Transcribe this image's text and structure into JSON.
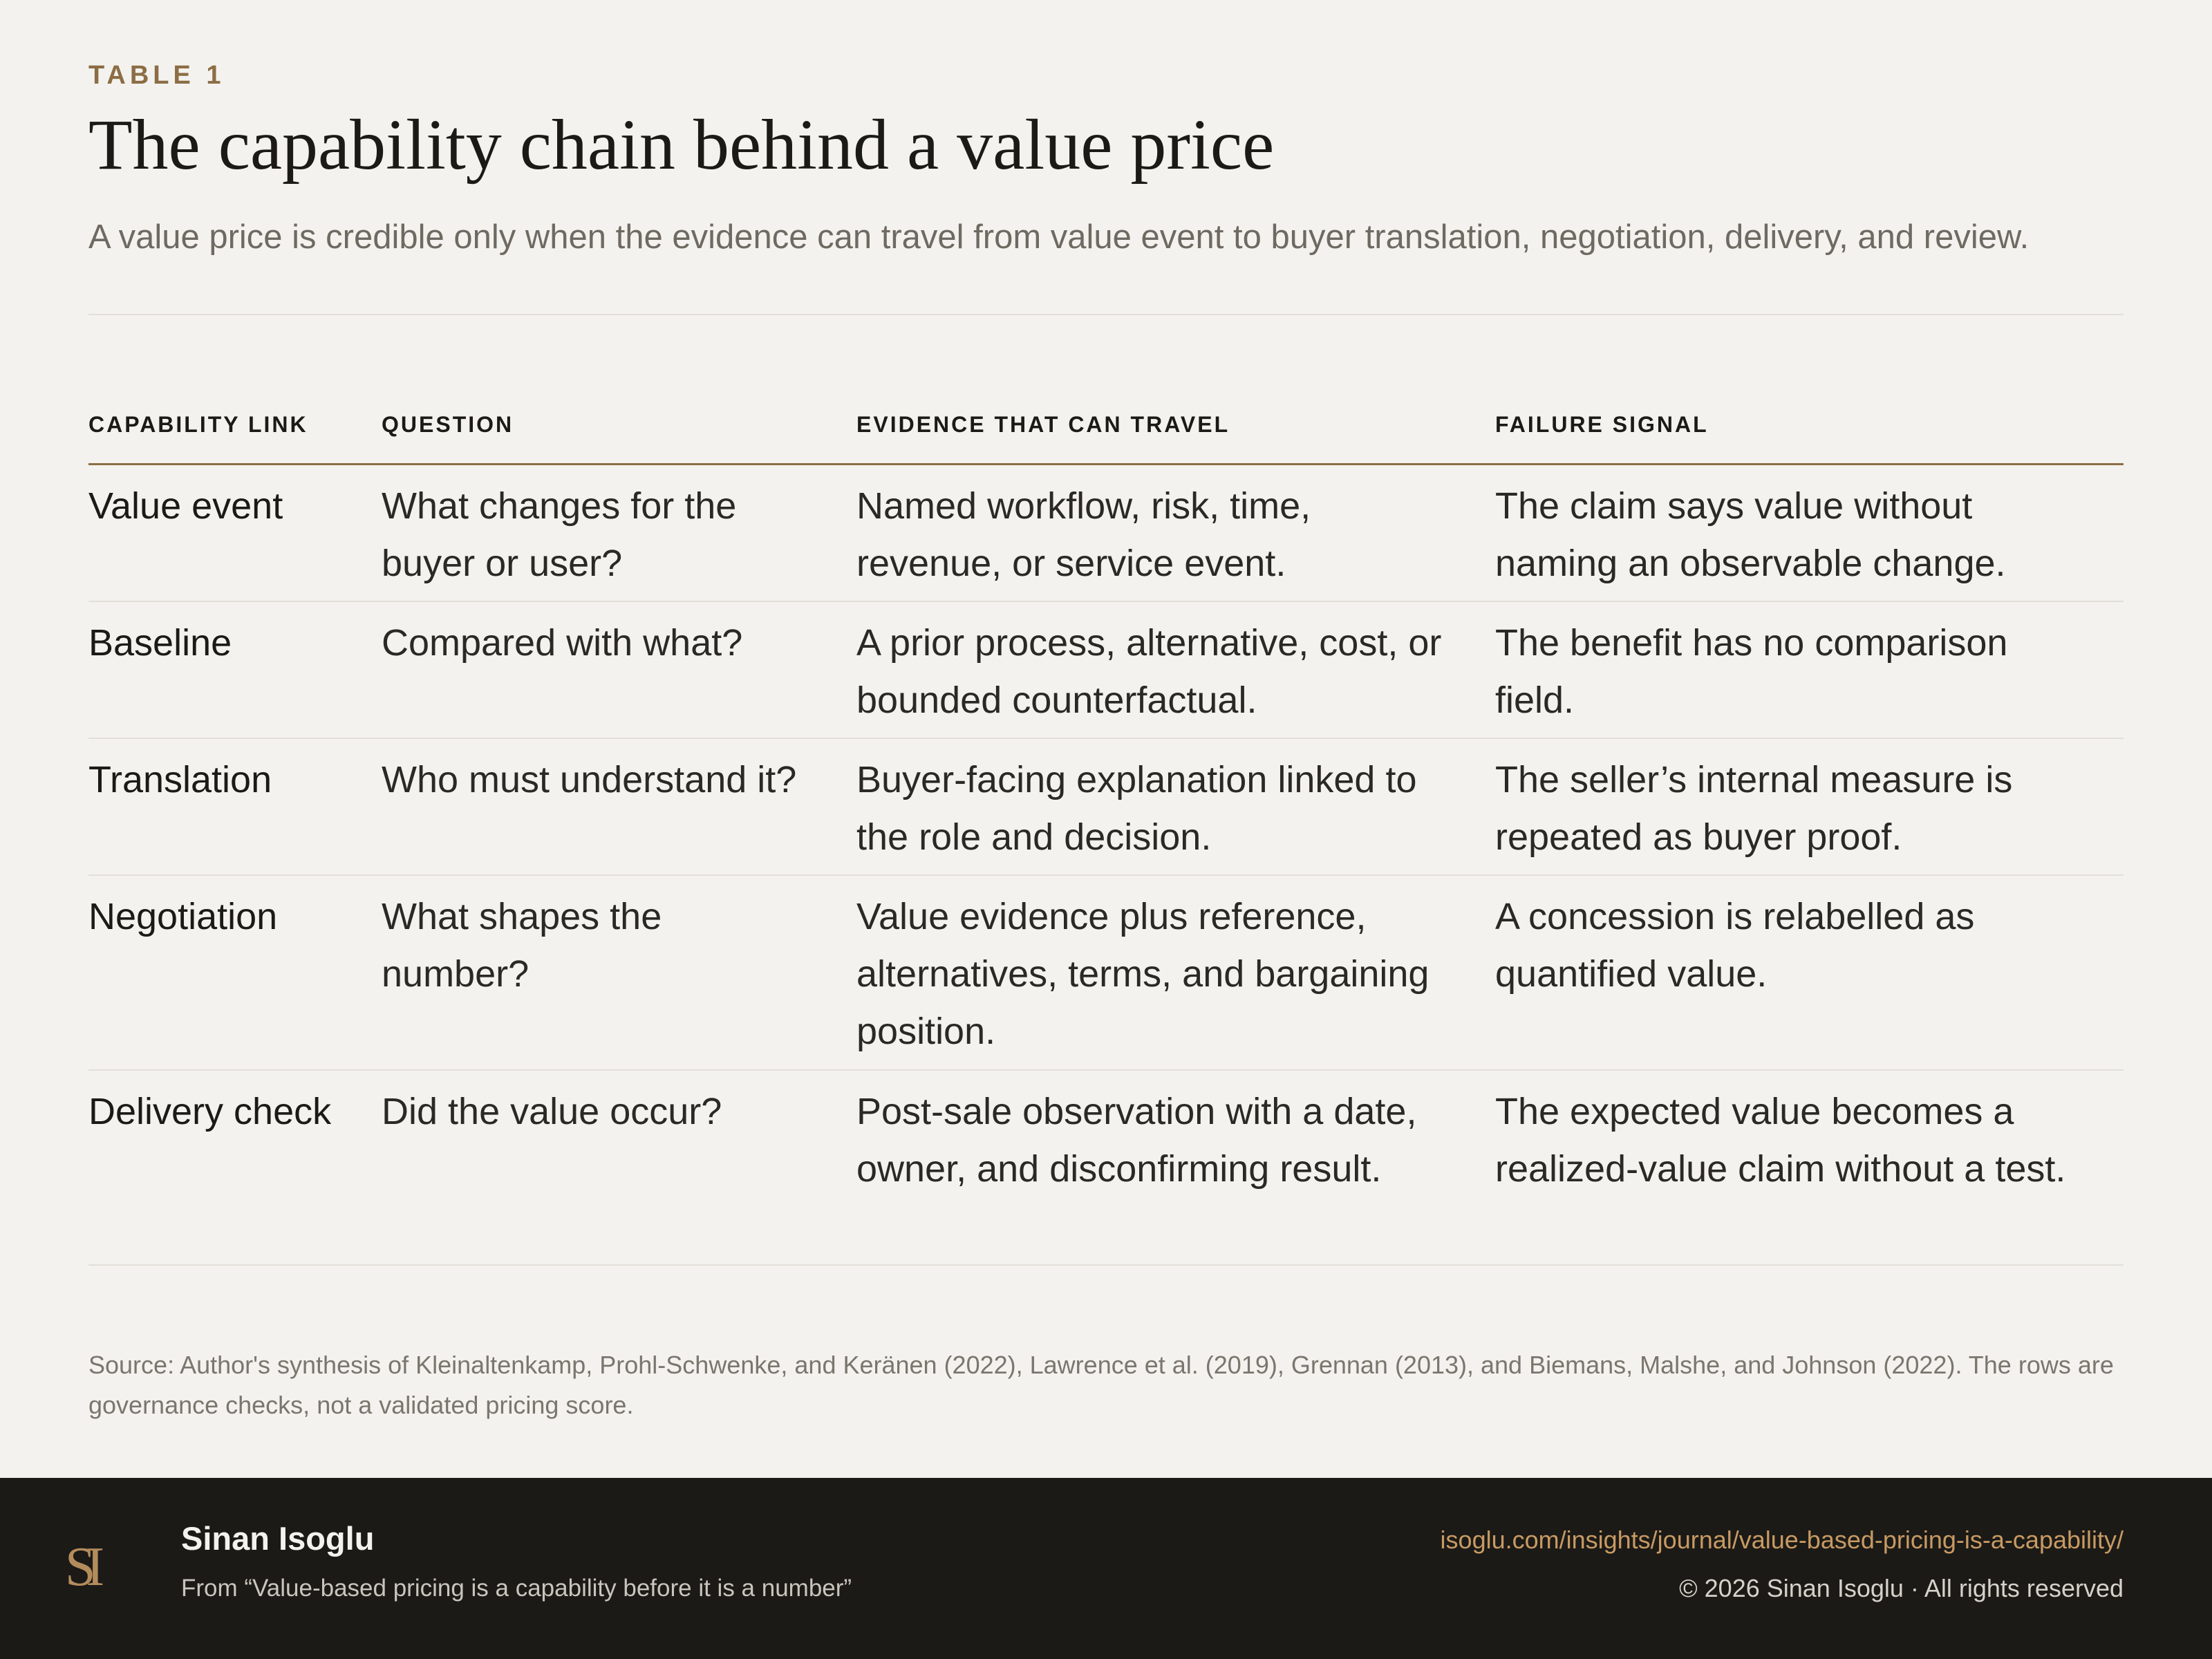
{
  "header": {
    "eyebrow": "TABLE 1",
    "title": "The capability chain behind a value price",
    "subtitle": "A value price is credible only when the evidence can travel from value event to buyer translation, negotiation, delivery, and review."
  },
  "table": {
    "columns": [
      "CAPABILITY LINK",
      "QUESTION",
      "EVIDENCE THAT CAN TRAVEL",
      "FAILURE SIGNAL"
    ],
    "rows": [
      {
        "link": "Value event",
        "question": "What changes for the buyer or user?",
        "evidence": "Named workflow, risk, time, revenue, or service event.",
        "failure": "The claim says value without naming an observable change."
      },
      {
        "link": "Baseline",
        "question": "Compared with what?",
        "evidence": "A prior process, alternative, cost, or bounded counterfactual.",
        "failure": "The benefit has no comparison field."
      },
      {
        "link": "Translation",
        "question": "Who must understand it?",
        "evidence": "Buyer-facing explanation linked to the role and decision.",
        "failure": "The seller’s internal measure is repeated as buyer proof."
      },
      {
        "link": "Negotiation",
        "question": "What shapes the number?",
        "evidence": "Value evidence plus reference, alternatives, terms, and bargaining position.",
        "failure": "A concession is relabelled as quantified value."
      },
      {
        "link": "Delivery check",
        "question": "Did the value occur?",
        "evidence": "Post-sale observation with a date, owner, and disconfirming result.",
        "failure": "The expected value becomes a realized-value claim without a test."
      }
    ]
  },
  "source": "Source: Author's synthesis of Kleinaltenkamp, Prohl-Schwenke, and Keränen (2022), Lawrence et al. (2019), Grennan (2013), and Biemans, Malshe, and Johnson (2022). The rows are governance checks, not a validated pricing score.",
  "footer": {
    "logo_text": "SI",
    "author": "Sinan Isoglu",
    "from": "From “Value-based pricing is a capability before it is a number”",
    "url": "isoglu.com/insights/journal/value-based-pricing-is-a-capability/",
    "copyright": "© 2026 Sinan Isoglu · All rights reserved"
  }
}
